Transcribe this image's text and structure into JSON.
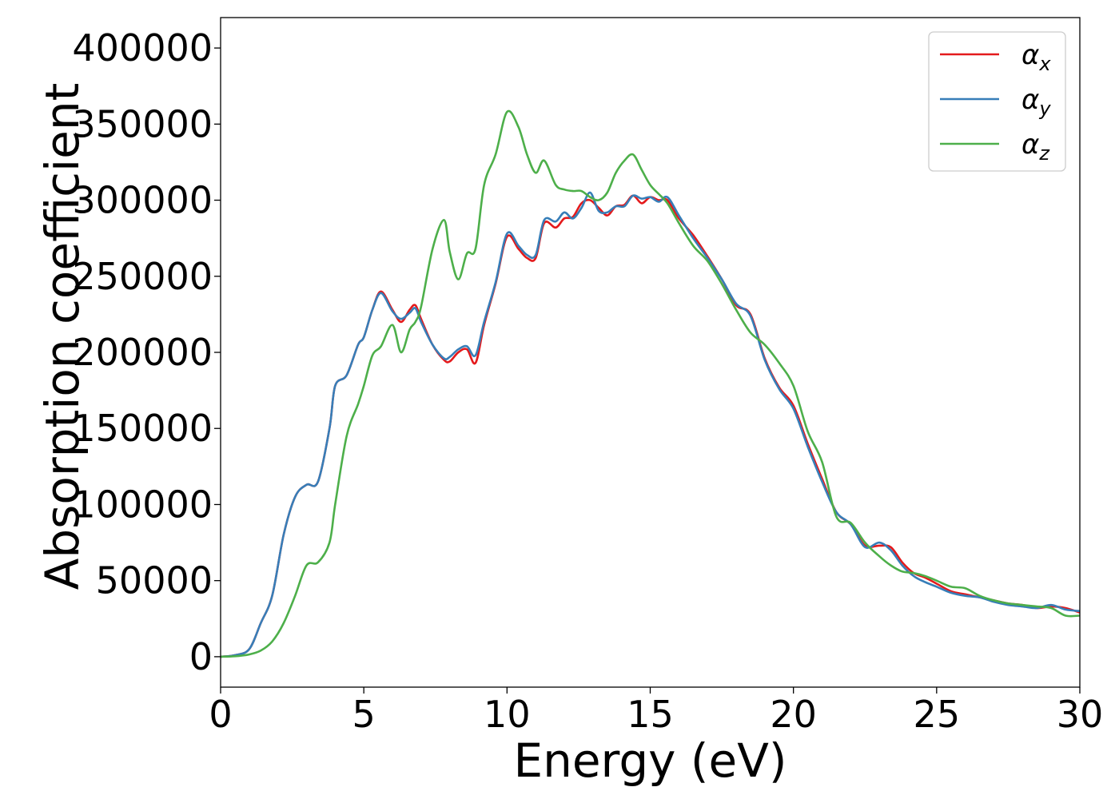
{
  "chart_data": {
    "type": "line",
    "xlabel": "Energy (eV)",
    "ylabel": "Absorption coefficient",
    "xlim": [
      0,
      30
    ],
    "ylim": [
      -20000,
      420000
    ],
    "xticks": [
      0,
      5,
      10,
      15,
      20,
      25,
      30
    ],
    "xtick_labels": [
      "0",
      "5",
      "10",
      "15",
      "20",
      "25",
      "30"
    ],
    "yticks": [
      0,
      50000,
      100000,
      150000,
      200000,
      250000,
      300000,
      350000,
      400000
    ],
    "ytick_labels": [
      "0",
      "50000",
      "100000",
      "150000",
      "200000",
      "250000",
      "300000",
      "350000",
      "400000"
    ],
    "legend_position": "top-right",
    "grid": false,
    "x": [
      0,
      0.5,
      1.0,
      1.4,
      1.8,
      2.2,
      2.6,
      3.0,
      3.4,
      3.8,
      4.0,
      4.4,
      4.8,
      5.0,
      5.3,
      5.6,
      6.0,
      6.3,
      6.6,
      6.8,
      7.0,
      7.4,
      7.8,
      8.0,
      8.3,
      8.6,
      8.9,
      9.2,
      9.6,
      10.0,
      10.4,
      10.7,
      11.0,
      11.3,
      11.7,
      12.0,
      12.3,
      12.6,
      12.9,
      13.2,
      13.5,
      13.8,
      14.1,
      14.4,
      14.7,
      15.0,
      15.3,
      15.6,
      16.0,
      16.5,
      17.0,
      17.5,
      18.0,
      18.5,
      19.0,
      19.5,
      20.0,
      20.5,
      21.0,
      21.5,
      22.0,
      22.5,
      23.0,
      23.4,
      23.8,
      24.2,
      24.6,
      25.0,
      25.5,
      26.0,
      26.5,
      27.0,
      27.5,
      28.0,
      28.5,
      29.0,
      29.5,
      30.0
    ],
    "series": [
      {
        "name": "αx",
        "color": "#e41a1c",
        "values": [
          0,
          1000,
          5000,
          22000,
          40000,
          80000,
          105000,
          113000,
          115000,
          150000,
          178000,
          185000,
          205000,
          210000,
          228000,
          240000,
          228000,
          220000,
          228000,
          231000,
          222000,
          205000,
          195000,
          194000,
          200000,
          202000,
          193000,
          218000,
          245000,
          276000,
          268000,
          262000,
          262000,
          285000,
          282000,
          288000,
          289000,
          298000,
          300000,
          295000,
          290000,
          296000,
          297000,
          303000,
          298000,
          302000,
          300000,
          300000,
          288000,
          277000,
          263000,
          248000,
          231000,
          225000,
          196000,
          177000,
          165000,
          140000,
          117000,
          95000,
          87000,
          73000,
          73000,
          72000,
          62000,
          55000,
          52000,
          48000,
          43000,
          41000,
          39000,
          37000,
          35000,
          34000,
          32000,
          33000,
          32000,
          29000
        ]
      },
      {
        "name": "αy",
        "color": "#377eb8",
        "values": [
          0,
          1000,
          5000,
          22000,
          40000,
          80000,
          105000,
          113000,
          115000,
          150000,
          178000,
          185000,
          205000,
          210000,
          228000,
          239000,
          227000,
          222000,
          226000,
          229000,
          220000,
          205000,
          196000,
          197000,
          202000,
          204000,
          198000,
          220000,
          246000,
          278000,
          270000,
          264000,
          264000,
          287000,
          286000,
          292000,
          288000,
          295000,
          305000,
          293000,
          292000,
          296000,
          296000,
          303000,
          301000,
          302000,
          299000,
          302000,
          290000,
          275000,
          262000,
          248000,
          232000,
          224000,
          195000,
          176000,
          163000,
          138000,
          115000,
          95000,
          87000,
          72000,
          75000,
          70000,
          60000,
          53000,
          49000,
          46000,
          42000,
          40000,
          39000,
          36000,
          34000,
          33000,
          32000,
          34000,
          31000,
          30000
        ]
      },
      {
        "name": "αz",
        "color": "#4daf4a",
        "values": [
          0,
          300,
          1500,
          4000,
          10000,
          22000,
          40000,
          60000,
          62000,
          75000,
          100000,
          145000,
          166000,
          178000,
          198000,
          204000,
          218000,
          200000,
          215000,
          220000,
          230000,
          268000,
          287000,
          266000,
          248000,
          265000,
          268000,
          310000,
          330000,
          358000,
          348000,
          330000,
          318000,
          326000,
          310000,
          307000,
          306000,
          306000,
          302000,
          300000,
          305000,
          318000,
          326000,
          330000,
          320000,
          310000,
          304000,
          298000,
          285000,
          270000,
          260000,
          245000,
          228000,
          213000,
          205000,
          193000,
          178000,
          148000,
          128000,
          92000,
          88000,
          75000,
          66000,
          60000,
          56000,
          55000,
          53000,
          50000,
          46000,
          45000,
          40000,
          37000,
          35000,
          34000,
          33000,
          32000,
          27000,
          27000
        ]
      }
    ]
  },
  "legend": {
    "entries": [
      {
        "base": "α",
        "sub": "x"
      },
      {
        "base": "α",
        "sub": "y"
      },
      {
        "base": "α",
        "sub": "z"
      }
    ]
  }
}
